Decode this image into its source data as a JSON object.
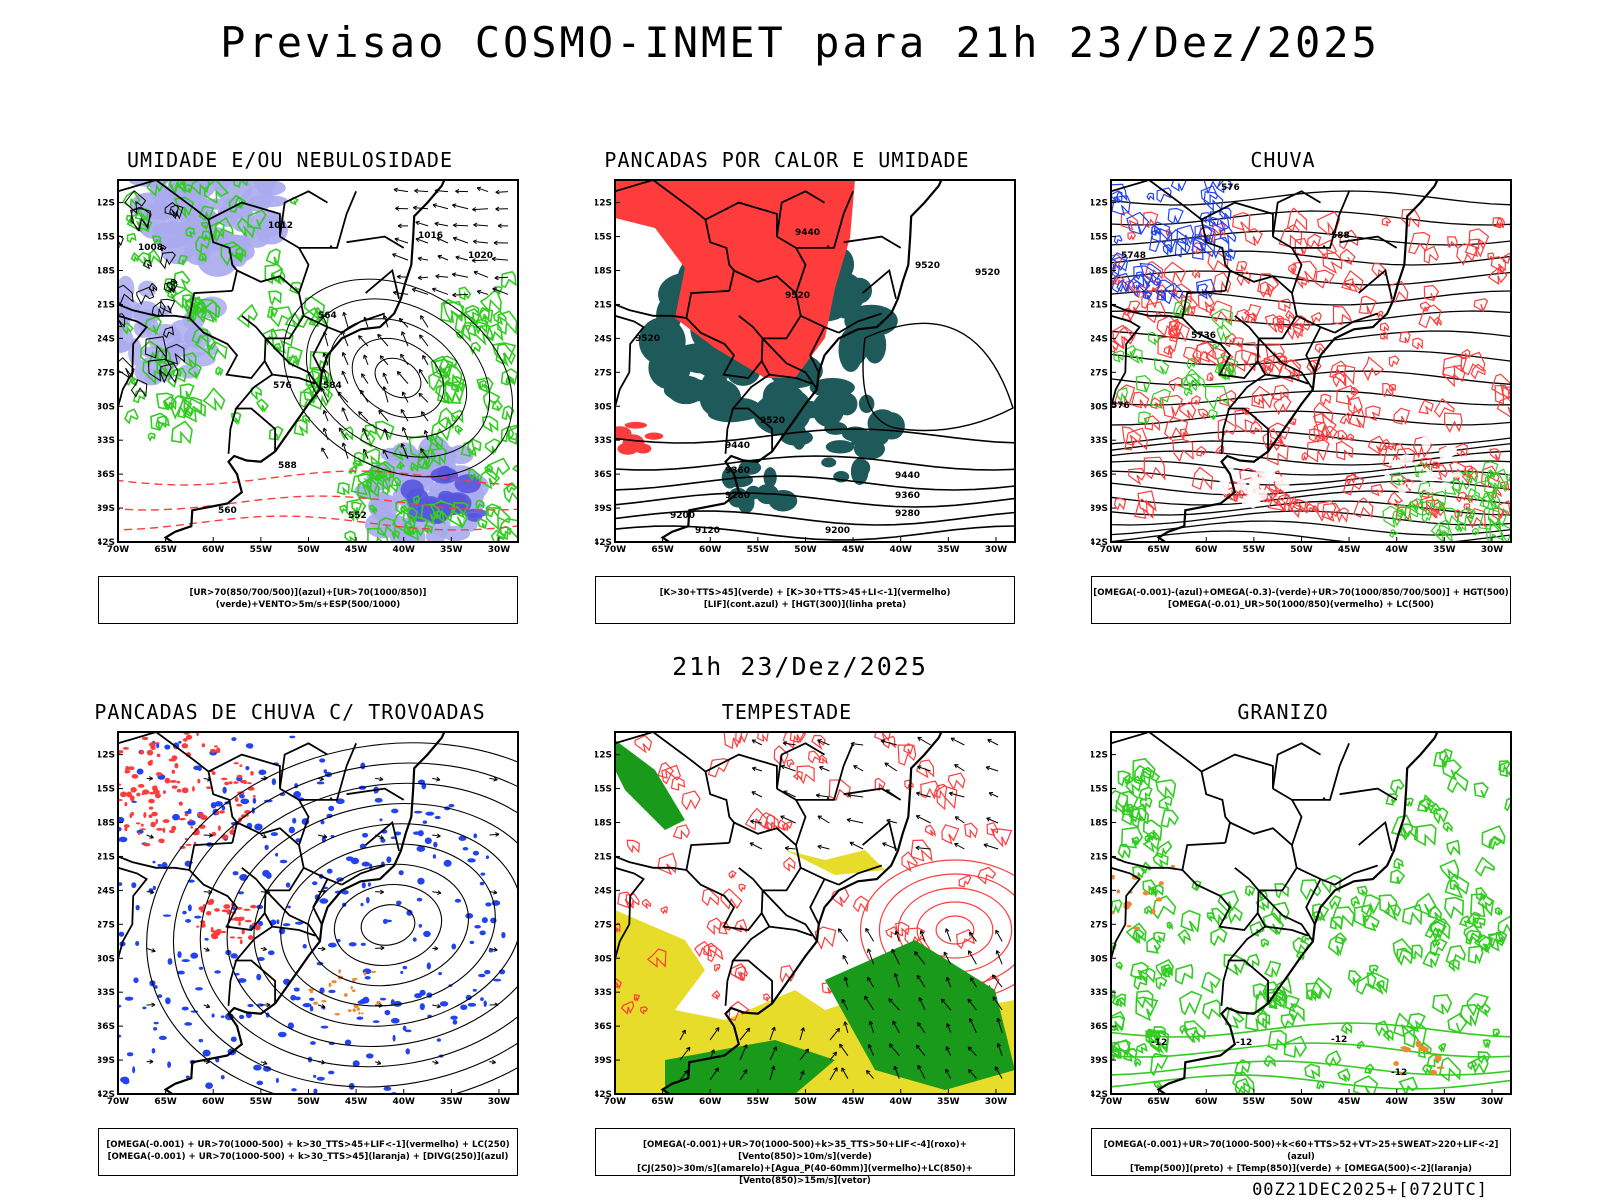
{
  "title": "Previsao COSMO-INMET  para 21h 23/Dez/2025",
  "mid_date": "21h 23/Dez/2025",
  "footer": "00Z21DEC2025+[072UTC]",
  "axes": {
    "lat_ticks": [
      "12S",
      "15S",
      "18S",
      "21S",
      "24S",
      "27S",
      "30S",
      "33S",
      "36S",
      "39S",
      "42S"
    ],
    "lon_ticks": [
      "70W",
      "65W",
      "60W",
      "55W",
      "50W",
      "45W",
      "40W",
      "35W",
      "30W"
    ]
  },
  "colors": {
    "red": "#ff3c3c",
    "green": "#33cc22",
    "blue": "#2244ee",
    "lavender": "#aaaaee",
    "teal": "#1f5a5a",
    "yellow": "#e8dc2a",
    "orange": "#ee8833"
  },
  "panels": [
    {
      "title": "UMIDADE E/OU NEBULOSIDADE",
      "legend_lines": [
        "[UR>70(850/700/500)](azul)+[UR>70(1000/850)](verde)+VENTO>5m/s+ESP(500/1000)"
      ],
      "contour_labels": [
        "1012",
        "1008",
        "1016",
        "1020",
        "564",
        "576",
        "584",
        "588",
        "552",
        "560"
      ]
    },
    {
      "title": "PANCADAS POR CALOR E UMIDADE",
      "legend_lines": [
        "[K>30+TTS>45](verde) + [K>30+TTS>45+LI<-1](vermelho)",
        "[LIF](cont.azul) + [HGT(300)](linha preta)"
      ],
      "contour_labels": [
        "9440",
        "9520",
        "9520",
        "9520",
        "9520",
        "9440",
        "9360",
        "9280",
        "9200",
        "9120",
        "9360",
        "9280",
        "9200",
        "9440",
        "9520"
      ]
    },
    {
      "title": "CHUVA",
      "legend_lines": [
        "[OMEGA(-0.001)-(azul)+OMEGA(-0.3)-(verde)+UR>70(1000/850/700/500)] + HGT(500)",
        "[OMEGA(-0.01)_UR>50(1000/850)(vermelho) + LC(500)"
      ],
      "contour_labels": [
        "576",
        "588",
        "5748",
        "5736",
        "576"
      ]
    },
    {
      "title": "PANCADAS DE CHUVA C/ TROVOADAS",
      "legend_lines": [
        "[OMEGA(-0.001) + UR>70(1000-500) + k>30_TTS>45+LIF<-1](vermelho) + LC(250)",
        "[OMEGA(-0.001) + UR>70(1000-500) + k>30_TTS>45](laranja) + [DIVG(250)](azul)"
      ],
      "contour_labels": []
    },
    {
      "title": "TEMPESTADE",
      "legend_lines": [
        "[OMEGA(-0.001)+UR>70(1000-500)+k>35_TTS>50+LIF<-4](roxo)+[Vento(850)>10m/s](verde)",
        "[CJ(250)>30m/s](amarelo)+[Agua_P(40-60mm)](vermelho)+LC(850)+[Vento(850)>15m/s](vetor)"
      ],
      "contour_labels": []
    },
    {
      "title": "GRANIZO",
      "legend_lines": [
        "[OMEGA(-0.001)+UR>70(1000-500)+k<60+TTS>52+VT>25+SWEAT>220+LIF<-2](azul)",
        "[Temp(500)](preto) + [Temp(850)](verde) + [OMEGA(500)<-2](laranja)"
      ],
      "contour_labels": [
        "-12",
        "-12",
        "-12",
        "-12"
      ]
    }
  ]
}
